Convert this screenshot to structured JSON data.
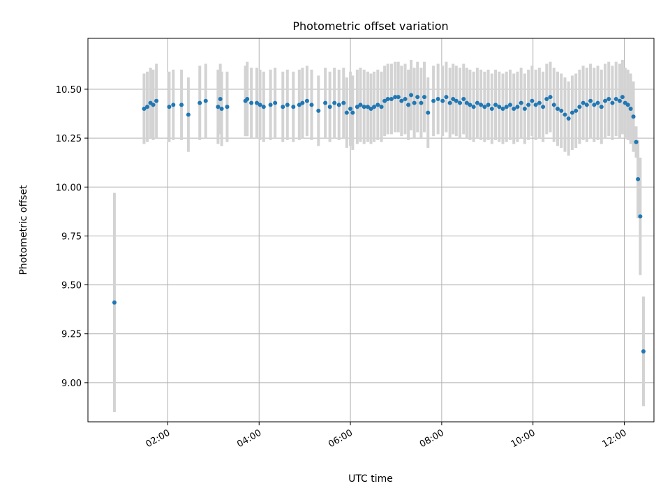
{
  "chart_data": {
    "type": "scatter",
    "title": "Photometric offset variation",
    "xlabel": "UTC time",
    "ylabel": "Photometric offset",
    "x_unit": "hours (UTC)",
    "xlim": [
      0.25,
      12.65
    ],
    "ylim": [
      8.8,
      10.76
    ],
    "grid": true,
    "legend": "none",
    "xticks": [
      {
        "value": 2,
        "label": "02:00"
      },
      {
        "value": 4,
        "label": "04:00"
      },
      {
        "value": 6,
        "label": "06:00"
      },
      {
        "value": 8,
        "label": "08:00"
      },
      {
        "value": 10,
        "label": "10:00"
      },
      {
        "value": 12,
        "label": "12:00"
      }
    ],
    "yticks": [
      {
        "value": 9.0,
        "label": "9.00"
      },
      {
        "value": 9.25,
        "label": "9.25"
      },
      {
        "value": 9.5,
        "label": "9.50"
      },
      {
        "value": 9.75,
        "label": "9.75"
      },
      {
        "value": 10.0,
        "label": "10.00"
      },
      {
        "value": 10.25,
        "label": "10.25"
      },
      {
        "value": 10.5,
        "label": "10.50"
      }
    ],
    "colors": {
      "point": "#1f77b4",
      "errorbar": "#d3d3d3",
      "grid": "#b0b0b0"
    },
    "series": [
      {
        "name": "offset",
        "points": [
          [
            0.83,
            9.41,
            0.56
          ],
          [
            1.48,
            10.4,
            0.18
          ],
          [
            1.55,
            10.41,
            0.18
          ],
          [
            1.62,
            10.43,
            0.18
          ],
          [
            1.68,
            10.42,
            0.18
          ],
          [
            1.75,
            10.44,
            0.19
          ],
          [
            2.03,
            10.41,
            0.18
          ],
          [
            2.12,
            10.42,
            0.18
          ],
          [
            2.3,
            10.42,
            0.18
          ],
          [
            2.45,
            10.37,
            0.19
          ],
          [
            2.7,
            10.43,
            0.19
          ],
          [
            2.83,
            10.44,
            0.19
          ],
          [
            3.1,
            10.41,
            0.19
          ],
          [
            3.15,
            10.45,
            0.18
          ],
          [
            3.18,
            10.4,
            0.19
          ],
          [
            3.3,
            10.41,
            0.18
          ],
          [
            3.7,
            10.44,
            0.18
          ],
          [
            3.74,
            10.45,
            0.19
          ],
          [
            3.83,
            10.43,
            0.18
          ],
          [
            3.95,
            10.43,
            0.18
          ],
          [
            4.02,
            10.42,
            0.18
          ],
          [
            4.1,
            10.41,
            0.18
          ],
          [
            4.25,
            10.42,
            0.18
          ],
          [
            4.35,
            10.43,
            0.18
          ],
          [
            4.52,
            10.41,
            0.18
          ],
          [
            4.62,
            10.42,
            0.18
          ],
          [
            4.75,
            10.41,
            0.18
          ],
          [
            4.88,
            10.42,
            0.18
          ],
          [
            4.95,
            10.43,
            0.18
          ],
          [
            5.05,
            10.44,
            0.18
          ],
          [
            5.15,
            10.42,
            0.18
          ],
          [
            5.3,
            10.39,
            0.18
          ],
          [
            5.45,
            10.43,
            0.18
          ],
          [
            5.55,
            10.41,
            0.18
          ],
          [
            5.65,
            10.43,
            0.18
          ],
          [
            5.75,
            10.42,
            0.18
          ],
          [
            5.85,
            10.43,
            0.18
          ],
          [
            5.92,
            10.38,
            0.18
          ],
          [
            6.0,
            10.4,
            0.19
          ],
          [
            6.05,
            10.38,
            0.19
          ],
          [
            6.15,
            10.41,
            0.19
          ],
          [
            6.22,
            10.42,
            0.19
          ],
          [
            6.3,
            10.41,
            0.19
          ],
          [
            6.38,
            10.41,
            0.18
          ],
          [
            6.45,
            10.4,
            0.18
          ],
          [
            6.52,
            10.41,
            0.18
          ],
          [
            6.6,
            10.42,
            0.18
          ],
          [
            6.68,
            10.41,
            0.18
          ],
          [
            6.75,
            10.44,
            0.18
          ],
          [
            6.82,
            10.45,
            0.18
          ],
          [
            6.9,
            10.45,
            0.18
          ],
          [
            6.98,
            10.46,
            0.18
          ],
          [
            7.05,
            10.46,
            0.18
          ],
          [
            7.12,
            10.44,
            0.18
          ],
          [
            7.2,
            10.45,
            0.18
          ],
          [
            7.27,
            10.42,
            0.18
          ],
          [
            7.33,
            10.47,
            0.18
          ],
          [
            7.4,
            10.43,
            0.18
          ],
          [
            7.47,
            10.46,
            0.18
          ],
          [
            7.55,
            10.43,
            0.18
          ],
          [
            7.62,
            10.46,
            0.18
          ],
          [
            7.7,
            10.38,
            0.18
          ],
          [
            7.82,
            10.44,
            0.18
          ],
          [
            7.92,
            10.45,
            0.18
          ],
          [
            8.02,
            10.44,
            0.18
          ],
          [
            8.1,
            10.46,
            0.18
          ],
          [
            8.18,
            10.43,
            0.18
          ],
          [
            8.25,
            10.45,
            0.18
          ],
          [
            8.32,
            10.44,
            0.18
          ],
          [
            8.4,
            10.43,
            0.18
          ],
          [
            8.48,
            10.45,
            0.18
          ],
          [
            8.55,
            10.43,
            0.18
          ],
          [
            8.62,
            10.42,
            0.18
          ],
          [
            8.7,
            10.41,
            0.18
          ],
          [
            8.78,
            10.43,
            0.18
          ],
          [
            8.86,
            10.42,
            0.18
          ],
          [
            8.94,
            10.41,
            0.18
          ],
          [
            9.02,
            10.42,
            0.18
          ],
          [
            9.1,
            10.4,
            0.18
          ],
          [
            9.18,
            10.42,
            0.18
          ],
          [
            9.26,
            10.41,
            0.18
          ],
          [
            9.34,
            10.4,
            0.18
          ],
          [
            9.42,
            10.41,
            0.18
          ],
          [
            9.5,
            10.42,
            0.18
          ],
          [
            9.58,
            10.4,
            0.18
          ],
          [
            9.66,
            10.41,
            0.18
          ],
          [
            9.74,
            10.43,
            0.18
          ],
          [
            9.82,
            10.4,
            0.18
          ],
          [
            9.9,
            10.42,
            0.18
          ],
          [
            9.98,
            10.44,
            0.18
          ],
          [
            10.06,
            10.42,
            0.18
          ],
          [
            10.14,
            10.43,
            0.18
          ],
          [
            10.22,
            10.41,
            0.18
          ],
          [
            10.3,
            10.45,
            0.18
          ],
          [
            10.38,
            10.46,
            0.18
          ],
          [
            10.46,
            10.42,
            0.19
          ],
          [
            10.54,
            10.4,
            0.19
          ],
          [
            10.62,
            10.39,
            0.19
          ],
          [
            10.7,
            10.37,
            0.19
          ],
          [
            10.78,
            10.35,
            0.19
          ],
          [
            10.86,
            10.38,
            0.19
          ],
          [
            10.94,
            10.39,
            0.19
          ],
          [
            11.02,
            10.41,
            0.19
          ],
          [
            11.1,
            10.43,
            0.19
          ],
          [
            11.18,
            10.42,
            0.19
          ],
          [
            11.26,
            10.44,
            0.19
          ],
          [
            11.34,
            10.42,
            0.19
          ],
          [
            11.42,
            10.43,
            0.19
          ],
          [
            11.5,
            10.41,
            0.19
          ],
          [
            11.58,
            10.44,
            0.19
          ],
          [
            11.66,
            10.45,
            0.19
          ],
          [
            11.74,
            10.43,
            0.19
          ],
          [
            11.82,
            10.45,
            0.19
          ],
          [
            11.9,
            10.44,
            0.19
          ],
          [
            11.96,
            10.46,
            0.19
          ],
          [
            12.02,
            10.43,
            0.18
          ],
          [
            12.08,
            10.42,
            0.18
          ],
          [
            12.14,
            10.4,
            0.18
          ],
          [
            12.2,
            10.36,
            0.18
          ],
          [
            12.26,
            10.23,
            0.08
          ],
          [
            12.3,
            10.04,
            0.2
          ],
          [
            12.35,
            9.85,
            0.3
          ],
          [
            12.42,
            9.16,
            0.28
          ]
        ]
      }
    ]
  }
}
